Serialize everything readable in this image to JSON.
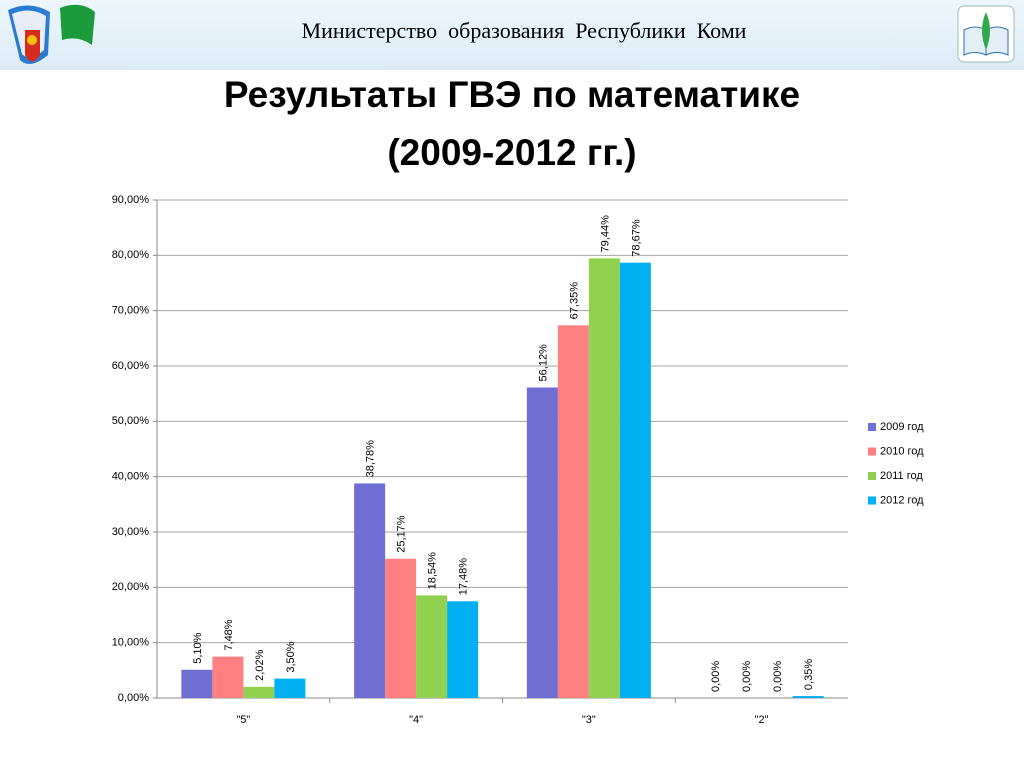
{
  "header": "Министерство  образования  Республики  Коми",
  "chart_data": {
    "type": "bar",
    "title": [
      "Результаты ГВЭ по математике",
      "(2009-2012 гг.)"
    ],
    "categories": [
      "\"5\"",
      "\"4\"",
      "\"3\"",
      "\"2\""
    ],
    "series": [
      {
        "name": "2009 год",
        "color": "#6f6fd3",
        "values": [
          5.1,
          38.78,
          56.12,
          0.0
        ],
        "value_labels": [
          "5,10%",
          "38,78%",
          "56,12%",
          "0,00%"
        ]
      },
      {
        "name": "2010 год",
        "color": "#ff8080",
        "values": [
          7.48,
          25.17,
          67.35,
          0.0
        ],
        "value_labels": [
          "7,48%",
          "25,17%",
          "67,35%",
          "0,00%"
        ]
      },
      {
        "name": "2011 год",
        "color": "#92d050",
        "values": [
          2.02,
          18.54,
          79.44,
          0.0
        ],
        "value_labels": [
          "2,02%",
          "18,54%",
          "79,44%",
          "0,00%"
        ]
      },
      {
        "name": "2012 год",
        "color": "#00b0f0",
        "values": [
          3.5,
          17.48,
          78.67,
          0.35
        ],
        "value_labels": [
          "3,50%",
          "17,48%",
          "78,67%",
          "0,35%"
        ]
      }
    ],
    "ylim": [
      0,
      90
    ],
    "yticks": [
      {
        "value": 0,
        "label": "0,00%"
      },
      {
        "value": 10,
        "label": "10,00%"
      },
      {
        "value": 20,
        "label": "20,00%"
      },
      {
        "value": 30,
        "label": "30,00%"
      },
      {
        "value": 40,
        "label": "40,00%"
      },
      {
        "value": 50,
        "label": "50,00%"
      },
      {
        "value": 60,
        "label": "60,00%"
      },
      {
        "value": 70,
        "label": "70,00%"
      },
      {
        "value": 80,
        "label": "80,00%"
      },
      {
        "value": 90,
        "label": "90,00%"
      }
    ],
    "grid": true,
    "legend": "right"
  }
}
